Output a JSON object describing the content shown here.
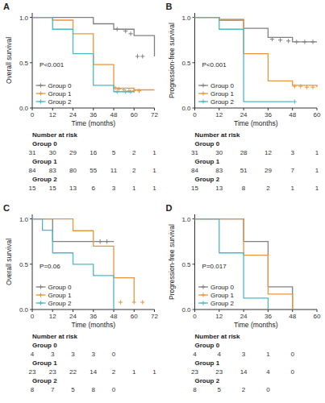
{
  "chart_data": [
    {
      "type": "step",
      "title": "A",
      "ylabel": "Overall survival",
      "xlabel": "Time (months)",
      "annotations": [
        "P<0.001"
      ],
      "legend": "lower left",
      "grid": false,
      "xlim": [
        0,
        72
      ],
      "xticks": [
        0,
        12,
        24,
        36,
        48,
        60,
        72
      ],
      "ylim": [
        0,
        1.05
      ],
      "yticks": [
        {
          "value": 0,
          "label": "0.0"
        },
        0.5,
        {
          "value": 1,
          "label": "1.0"
        }
      ],
      "series": [
        {
          "name": "Group 0",
          "color": "#808080",
          "marker": "plus",
          "x": [
            0,
            24,
            36,
            48,
            60,
            72
          ],
          "values": [
            1.0,
            1.0,
            0.93,
            0.87,
            0.8,
            0.57
          ],
          "censors": {
            "x": [
              50,
              55,
              58,
              62,
              65
            ],
            "values": [
              0.87,
              0.85,
              0.82,
              0.57,
              0.57
            ]
          }
        },
        {
          "name": "Group 1",
          "color": "#E8963C",
          "marker": "plus",
          "x": [
            0,
            12,
            24,
            36,
            48,
            60,
            72
          ],
          "values": [
            1.0,
            0.97,
            0.82,
            0.48,
            0.22,
            0.2,
            0.2
          ],
          "censors": {
            "x": [
              49,
              51,
              54,
              57,
              60,
              63
            ],
            "values": [
              0.22,
              0.21,
              0.2,
              0.19,
              0.19,
              0.19
            ]
          }
        },
        {
          "name": "Group 2",
          "color": "#4BB8C5",
          "marker": "plus",
          "x": [
            0,
            12,
            24,
            36,
            48,
            60
          ],
          "values": [
            1.0,
            0.87,
            0.6,
            0.25,
            0.18,
            0.18
          ],
          "censors": {
            "x": [
              50,
              55,
              58
            ],
            "values": [
              0.18,
              0.18,
              0.18
            ]
          }
        }
      ],
      "risk_table": {
        "title": "Number at risk",
        "rows": [
          {
            "name": "Group 0",
            "values": [
              31,
              30,
              29,
              16,
              5,
              2,
              1
            ]
          },
          {
            "name": "Group 1",
            "values": [
              84,
              83,
              80,
              55,
              11,
              2,
              1
            ]
          },
          {
            "name": "Group 2",
            "values": [
              15,
              15,
              13,
              6,
              3,
              1,
              1
            ]
          }
        ]
      }
    },
    {
      "type": "step",
      "title": "B",
      "ylabel": "Progression-free survival",
      "xlabel": "Time (months)",
      "annotations": [
        "P<0.001"
      ],
      "legend": "lower left",
      "grid": false,
      "xlim": [
        0,
        60
      ],
      "xticks": [
        0,
        12,
        24,
        36,
        48,
        60
      ],
      "ylim": [
        0,
        1.05
      ],
      "yticks": [
        {
          "value": 0,
          "label": "0.0"
        },
        0.5,
        {
          "value": 1,
          "label": "1.0"
        }
      ],
      "series": [
        {
          "name": "Group 0",
          "color": "#808080",
          "marker": "plus",
          "x": [
            0,
            12,
            24,
            36,
            48,
            60
          ],
          "values": [
            1.0,
            0.97,
            0.88,
            0.78,
            0.73,
            0.73
          ],
          "censors": {
            "x": [
              38,
              42,
              46,
              50,
              54,
              58
            ],
            "values": [
              0.76,
              0.75,
              0.74,
              0.73,
              0.73,
              0.73
            ]
          }
        },
        {
          "name": "Group 1",
          "color": "#E8963C",
          "marker": "plus",
          "x": [
            0,
            12,
            24,
            36,
            48,
            60
          ],
          "values": [
            1.0,
            0.98,
            0.6,
            0.3,
            0.25,
            0.23
          ],
          "censors": {
            "x": [
              49,
              52,
              55,
              58
            ],
            "values": [
              0.24,
              0.24,
              0.23,
              0.23
            ]
          }
        },
        {
          "name": "Group 2",
          "color": "#4BB8C5",
          "marker": "plus",
          "x": [
            0,
            12,
            24,
            48
          ],
          "values": [
            1.0,
            0.87,
            0.07,
            0.07
          ],
          "censors": {
            "x": [
              49
            ],
            "values": [
              0.07
            ]
          }
        }
      ],
      "risk_table": {
        "title": "Number at risk",
        "rows": [
          {
            "name": "Group 0",
            "values": [
              31,
              30,
              28,
              12,
              3,
              1
            ]
          },
          {
            "name": "Group 1",
            "values": [
              84,
              83,
              51,
              29,
              7,
              1
            ]
          },
          {
            "name": "Group 2",
            "values": [
              15,
              13,
              8,
              2,
              1,
              1
            ]
          }
        ]
      }
    },
    {
      "type": "step",
      "title": "C",
      "ylabel": "Overall survival",
      "xlabel": "Time (months)",
      "annotations": [
        "P=0.06"
      ],
      "legend": "lower left",
      "grid": false,
      "xlim": [
        0,
        72
      ],
      "xticks": [
        0,
        12,
        24,
        36,
        48,
        60,
        72
      ],
      "ylim": [
        0,
        1.05
      ],
      "yticks": [
        {
          "value": 0,
          "label": "0.0"
        },
        0.5,
        {
          "value": 1,
          "label": "1.0"
        }
      ],
      "series": [
        {
          "name": "Group 0",
          "color": "#808080",
          "marker": "plus",
          "x": [
            0,
            12,
            48
          ],
          "values": [
            1.0,
            0.75,
            0.75
          ],
          "censors": {
            "x": [
              40,
              44
            ],
            "values": [
              0.75,
              0.75
            ]
          }
        },
        {
          "name": "Group 1",
          "color": "#E8963C",
          "marker": "plus",
          "x": [
            0,
            12,
            24,
            36,
            48,
            60
          ],
          "values": [
            1.0,
            1.0,
            0.87,
            0.7,
            0.35,
            0.08
          ],
          "censors": {
            "x": [
              52,
              60,
              65
            ],
            "values": [
              0.08,
              0.08,
              0.08
            ]
          }
        },
        {
          "name": "Group 2",
          "color": "#4BB8C5",
          "marker": "plus",
          "x": [
            0,
            6,
            12,
            24,
            36,
            48
          ],
          "values": [
            1.0,
            0.875,
            0.625,
            0.5,
            0.375,
            0.0
          ],
          "censors": {
            "x": [],
            "values": []
          }
        }
      ],
      "risk_table": {
        "title": "Number at risk",
        "rows": [
          {
            "name": "Group 0",
            "values": [
              4,
              3,
              3,
              3,
              0,
              null,
              null
            ]
          },
          {
            "name": "Group 1",
            "values": [
              23,
              23,
              22,
              14,
              2,
              1,
              1
            ]
          },
          {
            "name": "Group 2",
            "values": [
              8,
              7,
              5,
              8,
              0,
              null,
              null
            ]
          }
        ]
      }
    },
    {
      "type": "step",
      "title": "D",
      "ylabel": "Progression-free survival",
      "xlabel": "Time (months)",
      "annotations": [
        "P=0.017"
      ],
      "legend": "lower left",
      "grid": false,
      "xlim": [
        0,
        60
      ],
      "xticks": [
        0,
        12,
        24,
        36,
        48,
        60
      ],
      "ylim": [
        0,
        1.05
      ],
      "yticks": [
        {
          "value": 0,
          "label": "0.0"
        },
        0.5,
        {
          "value": 1,
          "label": "1.0"
        }
      ],
      "series": [
        {
          "name": "Group 0",
          "color": "#808080",
          "marker": "plus",
          "x": [
            0,
            12,
            24,
            36,
            48
          ],
          "values": [
            1.0,
            1.0,
            0.75,
            0.25,
            0.0
          ],
          "censors": {
            "x": [],
            "values": []
          }
        },
        {
          "name": "Group 1",
          "color": "#E8963C",
          "marker": "plus",
          "x": [
            0,
            12,
            24,
            36,
            48
          ],
          "values": [
            1.0,
            1.0,
            0.6,
            0.17,
            0.0
          ],
          "censors": {
            "x": [],
            "values": []
          }
        },
        {
          "name": "Group 2",
          "color": "#4BB8C5",
          "marker": "plus",
          "x": [
            0,
            12,
            24,
            36
          ],
          "values": [
            1.0,
            0.625,
            0.125,
            0.0
          ],
          "censors": {
            "x": [],
            "values": []
          }
        }
      ],
      "risk_table": {
        "title": "Number at risk",
        "rows": [
          {
            "name": "Group 0",
            "values": [
              4,
              4,
              3,
              1,
              0,
              null
            ]
          },
          {
            "name": "Group 1",
            "values": [
              23,
              23,
              14,
              4,
              0,
              null
            ]
          },
          {
            "name": "Group 2",
            "values": [
              8,
              5,
              2,
              0,
              null,
              null
            ]
          }
        ]
      }
    }
  ]
}
